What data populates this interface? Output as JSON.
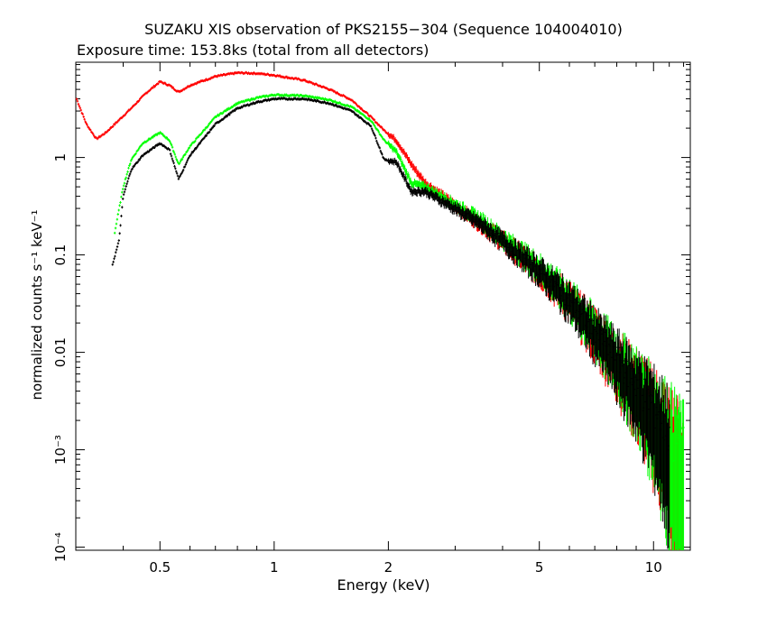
{
  "chart_data": {
    "type": "scatter",
    "title": "SUZAKU XIS observation of PKS2155−304 (Sequence 104004010)",
    "subtitle": "Exposure time: 153.8ks (total from all detectors)",
    "xlabel": "Energy (keV)",
    "ylabel": "normalized counts s⁻¹ keV⁻¹",
    "x_scale": "log",
    "y_scale": "log",
    "xlim": [
      0.3,
      12.5
    ],
    "ylim": [
      9.3e-05,
      9.5
    ],
    "grid": false,
    "x_ticks": [
      {
        "value": 0.5,
        "label": "0.5"
      },
      {
        "value": 1,
        "label": "1"
      },
      {
        "value": 2,
        "label": "2"
      },
      {
        "value": 5,
        "label": "5"
      },
      {
        "value": 10,
        "label": "10"
      }
    ],
    "y_ticks": [
      {
        "value": 0.0001,
        "label": "10⁻⁴"
      },
      {
        "value": 0.001,
        "label": "10⁻³"
      },
      {
        "value": 0.01,
        "label": "0.01"
      },
      {
        "value": 0.1,
        "label": "0.1"
      },
      {
        "value": 1,
        "label": "1"
      }
    ],
    "series": [
      {
        "color": "#ff0000",
        "points": [
          [
            0.3,
            4.2
          ],
          [
            0.32,
            2.2
          ],
          [
            0.34,
            1.55
          ],
          [
            0.36,
            1.8
          ],
          [
            0.38,
            2.2
          ],
          [
            0.42,
            3.2
          ],
          [
            0.46,
            4.6
          ],
          [
            0.5,
            6.0
          ],
          [
            0.53,
            5.5
          ],
          [
            0.56,
            4.7
          ],
          [
            0.6,
            5.5
          ],
          [
            0.7,
            6.8
          ],
          [
            0.8,
            7.4
          ],
          [
            0.9,
            7.3
          ],
          [
            1.0,
            7.0
          ],
          [
            1.2,
            6.2
          ],
          [
            1.4,
            5.0
          ],
          [
            1.6,
            3.9
          ],
          [
            1.8,
            2.6
          ],
          [
            1.95,
            1.9
          ],
          [
            2.1,
            1.5
          ],
          [
            2.3,
            0.85
          ],
          [
            2.5,
            0.55
          ],
          [
            3.0,
            0.32
          ],
          [
            3.5,
            0.21
          ],
          [
            4.0,
            0.14
          ],
          [
            5.0,
            0.07
          ],
          [
            6.0,
            0.035
          ],
          [
            7.0,
            0.017
          ],
          [
            8.0,
            0.009
          ],
          [
            9.0,
            0.005
          ],
          [
            10.0,
            0.003
          ],
          [
            11.0,
            0.0017
          ],
          [
            12.0,
            0.001
          ]
        ]
      },
      {
        "color": "#00ff00",
        "points": [
          [
            0.38,
            0.17
          ],
          [
            0.4,
            0.5
          ],
          [
            0.42,
            0.95
          ],
          [
            0.45,
            1.4
          ],
          [
            0.5,
            1.8
          ],
          [
            0.53,
            1.5
          ],
          [
            0.56,
            0.85
          ],
          [
            0.6,
            1.3
          ],
          [
            0.7,
            2.6
          ],
          [
            0.8,
            3.6
          ],
          [
            0.9,
            4.1
          ],
          [
            1.0,
            4.4
          ],
          [
            1.2,
            4.3
          ],
          [
            1.4,
            3.9
          ],
          [
            1.6,
            3.3
          ],
          [
            1.8,
            2.4
          ],
          [
            1.95,
            1.5
          ],
          [
            2.1,
            1.15
          ],
          [
            2.3,
            0.55
          ],
          [
            2.5,
            0.5
          ],
          [
            3.0,
            0.33
          ],
          [
            3.5,
            0.23
          ],
          [
            4.0,
            0.15
          ],
          [
            5.0,
            0.075
          ],
          [
            6.0,
            0.037
          ],
          [
            7.0,
            0.018
          ],
          [
            8.0,
            0.0095
          ],
          [
            9.0,
            0.0052
          ],
          [
            10.0,
            0.0031
          ],
          [
            11.0,
            0.0018
          ],
          [
            12.0,
            0.0011
          ]
        ]
      },
      {
        "color": "#000000",
        "points": [
          [
            0.375,
            0.08
          ],
          [
            0.39,
            0.14
          ],
          [
            0.4,
            0.4
          ],
          [
            0.42,
            0.75
          ],
          [
            0.45,
            1.05
          ],
          [
            0.5,
            1.4
          ],
          [
            0.53,
            1.2
          ],
          [
            0.56,
            0.6
          ],
          [
            0.6,
            1.05
          ],
          [
            0.7,
            2.2
          ],
          [
            0.8,
            3.2
          ],
          [
            0.9,
            3.7
          ],
          [
            1.0,
            4.0
          ],
          [
            1.2,
            4.0
          ],
          [
            1.4,
            3.6
          ],
          [
            1.6,
            3.0
          ],
          [
            1.8,
            2.1
          ],
          [
            1.95,
            0.95
          ],
          [
            2.1,
            0.9
          ],
          [
            2.3,
            0.45
          ],
          [
            2.5,
            0.45
          ],
          [
            3.0,
            0.3
          ],
          [
            3.5,
            0.21
          ],
          [
            4.0,
            0.14
          ],
          [
            5.0,
            0.07
          ],
          [
            6.0,
            0.035
          ],
          [
            7.0,
            0.017
          ],
          [
            8.0,
            0.009
          ],
          [
            9.0,
            0.005
          ],
          [
            10.0,
            0.003
          ],
          [
            11.0,
            0.0017
          ]
        ]
      }
    ]
  }
}
